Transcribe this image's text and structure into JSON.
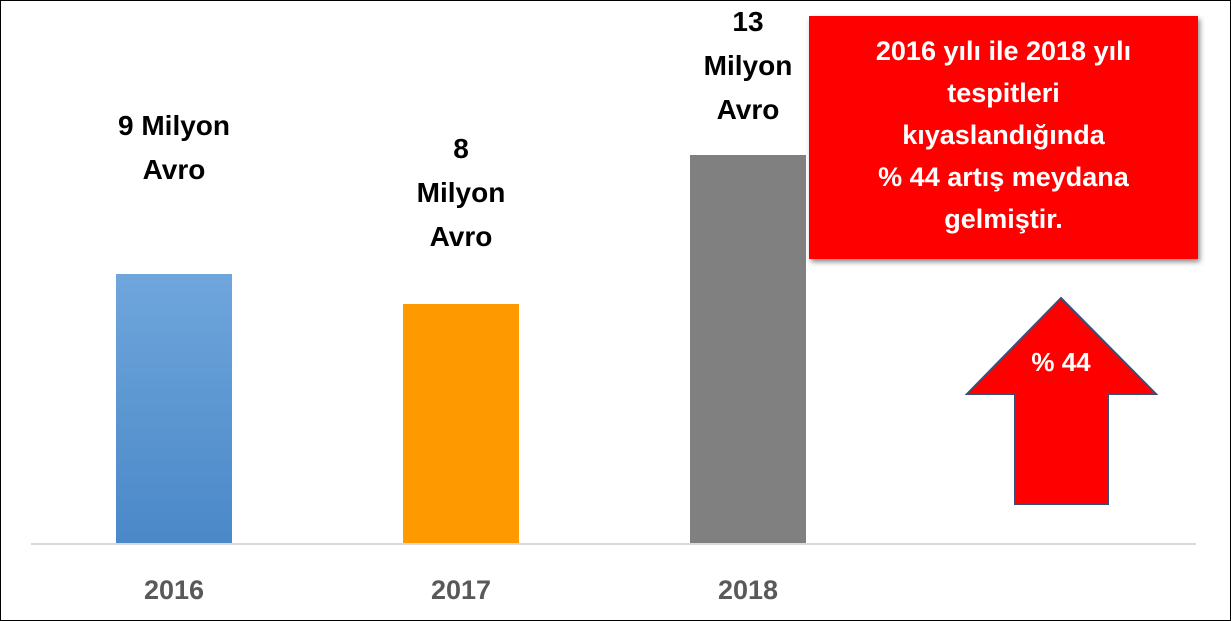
{
  "chart_data": {
    "type": "bar",
    "categories": [
      "2016",
      "2017",
      "2018"
    ],
    "values": [
      9,
      8,
      13
    ],
    "value_labels": [
      "9 Milyon\nAvro",
      "8\nMilyon\nAvro",
      "13\nMilyon\nAvro"
    ],
    "colors": [
      "#5b9bd5",
      "#ff9900",
      "#808080"
    ],
    "ylim": [
      0,
      13
    ],
    "annotation": "2016 yılı ile 2018 yılı\ntespitleri\nkıyaslandığında\n% 44 artış meydana\ngelmiştir.",
    "arrow_label": "% 44"
  }
}
